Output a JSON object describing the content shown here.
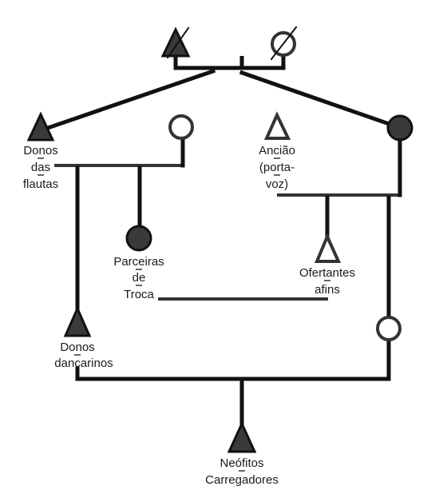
{
  "colors": {
    "line": "#111111",
    "filled_symbol": "#3a3a3a",
    "open_symbol": "#ffffff",
    "text": "#1a1a1a"
  },
  "labels": {
    "donos_flautas": [
      "Donos",
      "das",
      "flautas"
    ],
    "anciao": [
      "Ancião",
      "(porta-",
      "voz)"
    ],
    "parceiras": [
      "Parceiras",
      "de",
      "Troca"
    ],
    "ofertantes": [
      "Ofertantes",
      "afins"
    ],
    "donos_dancarinos": [
      "Donos",
      "dançarinos"
    ],
    "neofitos": [
      "Neófitos",
      "Carregadores"
    ]
  },
  "symbols": [
    {
      "id": "top-male-deceased",
      "shape": "triangle",
      "filled": true,
      "deceased": true
    },
    {
      "id": "top-female-deceased",
      "shape": "circle",
      "filled": false,
      "deceased": true
    },
    {
      "id": "donos-flautas",
      "shape": "triangle",
      "filled": true
    },
    {
      "id": "spouse-female",
      "shape": "circle",
      "filled": false
    },
    {
      "id": "anciao",
      "shape": "triangle",
      "filled": false
    },
    {
      "id": "right-female",
      "shape": "circle",
      "filled": true
    },
    {
      "id": "parceiras",
      "shape": "circle",
      "filled": true
    },
    {
      "id": "ofertantes",
      "shape": "triangle",
      "filled": false
    },
    {
      "id": "donos-dancarinos",
      "shape": "triangle",
      "filled": true
    },
    {
      "id": "lower-right-female",
      "shape": "circle",
      "filled": false
    },
    {
      "id": "neofitos",
      "shape": "triangle",
      "filled": true
    }
  ]
}
